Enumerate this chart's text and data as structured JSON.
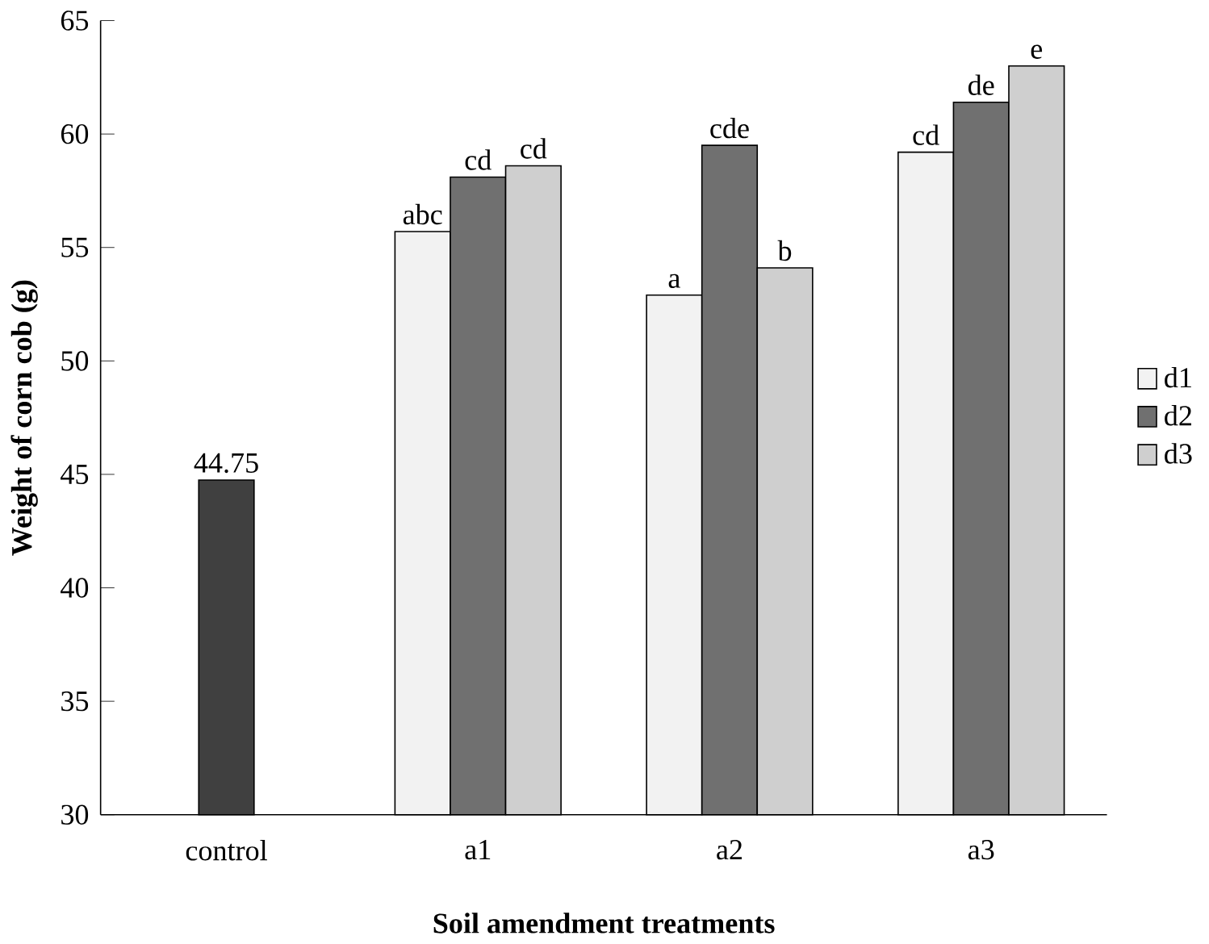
{
  "chart_data": {
    "type": "bar",
    "xlabel": "Soil amendment treatments",
    "ylabel": "Weight of corn cob (g)",
    "categories": [
      "control",
      "a1",
      "a2",
      "a3"
    ],
    "series": [
      {
        "color": "#404040",
        "values": [
          44.75,
          null,
          null,
          null
        ],
        "value_labels": [
          "44.75",
          null,
          null,
          null
        ]
      },
      {
        "name": "d1",
        "color": "#f2f2f2",
        "values": [
          null,
          55.7,
          52.9,
          59.2
        ],
        "value_labels": [
          null,
          "abc",
          "a",
          "cd"
        ]
      },
      {
        "name": "d2",
        "color": "#707070",
        "values": [
          null,
          58.1,
          59.5,
          61.4
        ],
        "value_labels": [
          null,
          "cd",
          "cde",
          "de"
        ]
      },
      {
        "name": "d3",
        "color": "#cfcfcf",
        "values": [
          null,
          58.6,
          54.1,
          63.0
        ],
        "value_labels": [
          null,
          "cd",
          "b",
          "e"
        ]
      }
    ],
    "ylim": [
      30,
      65
    ],
    "yticks": [
      30,
      35,
      40,
      45,
      50,
      55,
      60,
      65
    ],
    "legend": "right",
    "grid": false
  }
}
